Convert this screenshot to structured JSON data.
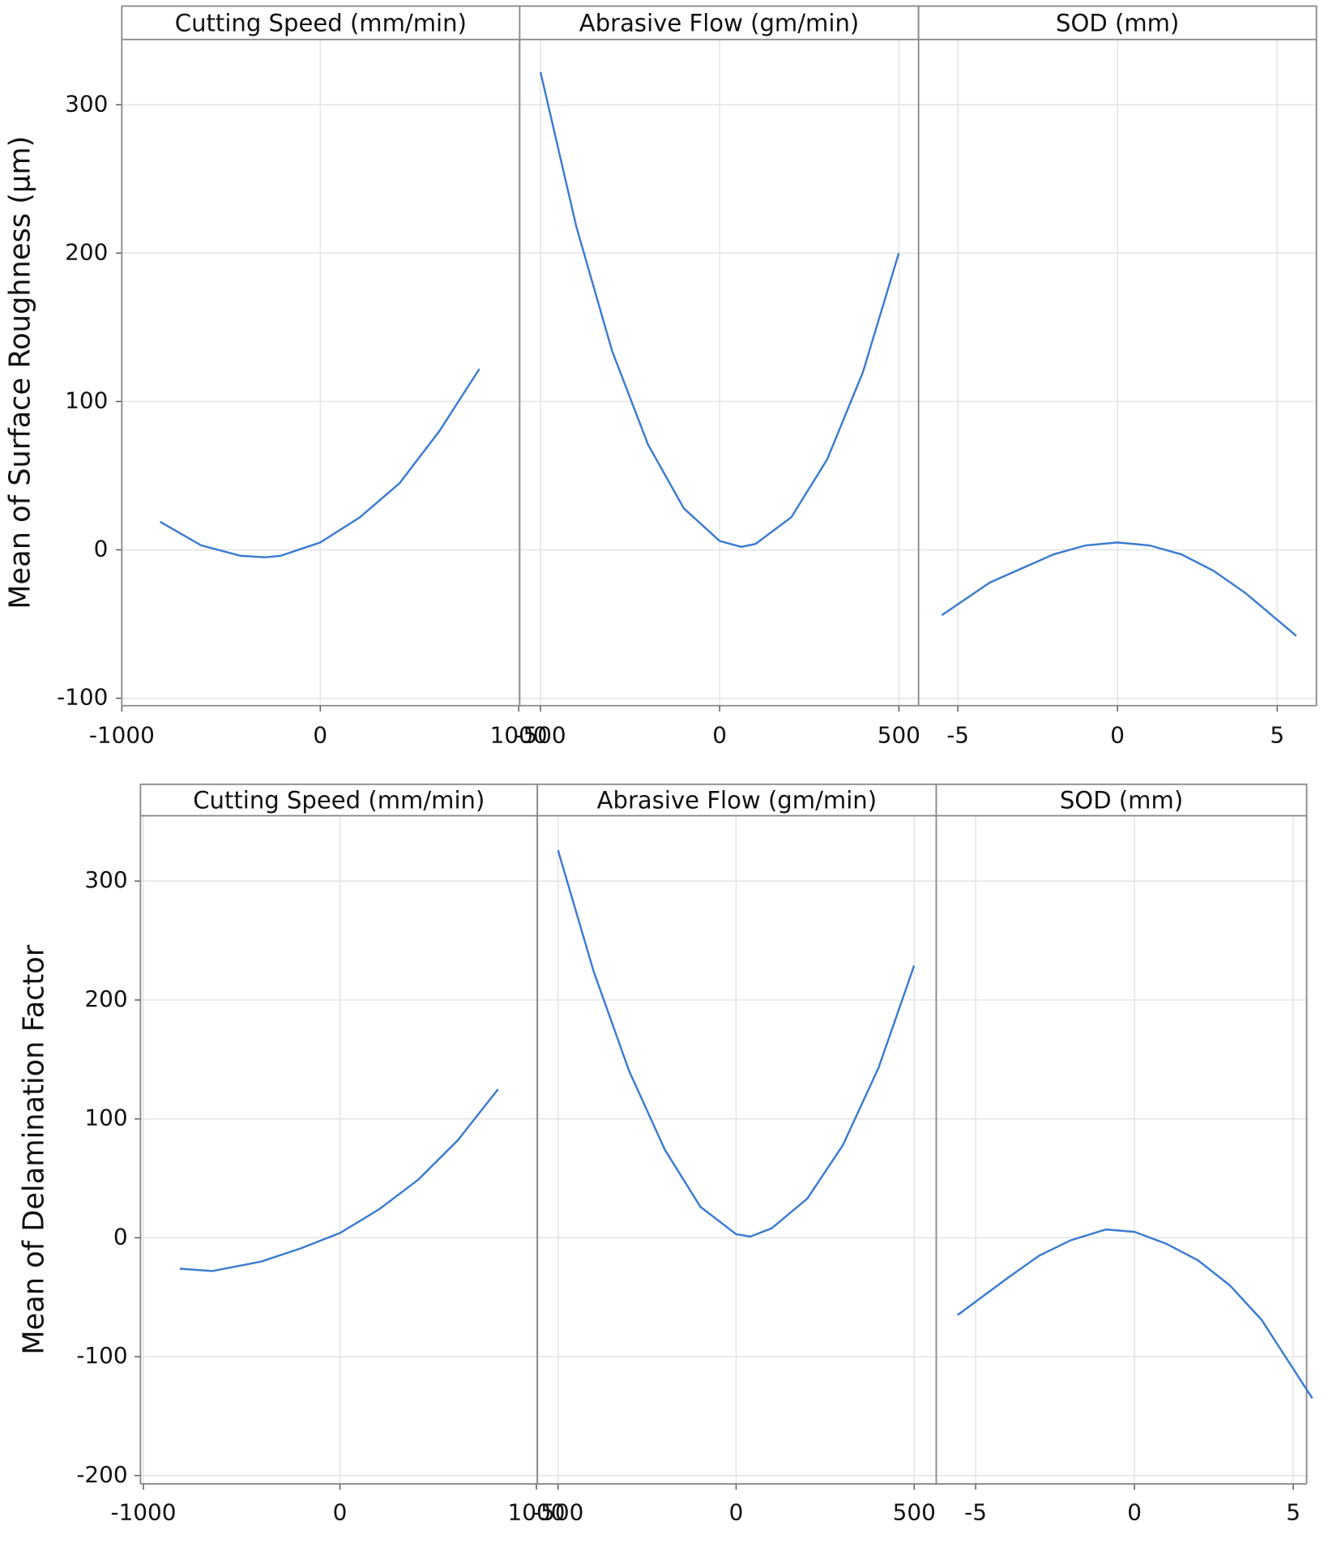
{
  "chart_data": [
    {
      "type": "line",
      "ylabel": "Mean of Surface Roughness (μm)",
      "color": "#3a7bd0",
      "grid": true,
      "ylim": [
        -105,
        344
      ],
      "yticks": [
        -100,
        0,
        100,
        200,
        300
      ],
      "panels": [
        {
          "title": "Cutting Speed (mm/min)",
          "xlim": [
            -1000,
            1005
          ],
          "xticks": [
            -1000,
            0,
            1000
          ],
          "x": [
            -807,
            -600,
            -400,
            -277,
            -200,
            0,
            200,
            400,
            600,
            802
          ],
          "values": [
            19,
            3,
            -4,
            -5,
            -4,
            5,
            22,
            45,
            80,
            122
          ]
        },
        {
          "title": "Abrasive Flow (gm/min)",
          "xlim": [
            -558,
            555
          ],
          "xticks": [
            -500,
            0,
            500
          ],
          "x": [
            -500,
            -400,
            -300,
            -200,
            -100,
            0,
            60,
            100,
            200,
            300,
            400,
            500
          ],
          "values": [
            322,
            218,
            134,
            71,
            28,
            6,
            2,
            4,
            22,
            61,
            120,
            200
          ]
        },
        {
          "title": "SOD (mm)",
          "xlim": [
            -6.23,
            6.23
          ],
          "xticks": [
            -5,
            0,
            5
          ],
          "x": [
            -5.5,
            -4,
            -2,
            -1,
            0,
            1,
            2,
            3,
            4,
            5.6
          ],
          "values": [
            -44,
            -22,
            -3,
            3,
            5,
            3,
            -3,
            -14,
            -29,
            -58
          ]
        }
      ]
    },
    {
      "type": "line",
      "ylabel": "Mean of Delamination Factor",
      "color": "#3a7bd0",
      "grid": true,
      "ylim": [
        -207,
        355
      ],
      "yticks": [
        -200,
        -100,
        0,
        100,
        200,
        300
      ],
      "panels": [
        {
          "title": "Cutting Speed (mm/min)",
          "xlim": [
            -1015,
            1005
          ],
          "xticks": [
            -1000,
            0,
            1000
          ],
          "x": [
            -815,
            -650,
            -400,
            -200,
            0,
            200,
            400,
            600,
            805
          ],
          "values": [
            -26,
            -28,
            -20,
            -9,
            4,
            24,
            49,
            82,
            125
          ]
        },
        {
          "title": "Abrasive Flow (gm/min)",
          "xlim": [
            -558,
            562
          ],
          "xticks": [
            -500,
            0,
            500
          ],
          "x": [
            -500,
            -400,
            -300,
            -200,
            -100,
            0,
            40,
            100,
            200,
            300,
            400,
            500
          ],
          "values": [
            326,
            224,
            140,
            74,
            26,
            3,
            1,
            8,
            33,
            78,
            143,
            229
          ]
        },
        {
          "title": "SOD (mm)",
          "xlim": [
            -6.24,
            5.42
          ],
          "xticks": [
            -5,
            0,
            5
          ],
          "x": [
            -5.57,
            -4,
            -3,
            -2,
            -0.9,
            0,
            1,
            2,
            3,
            4,
            5.6
          ],
          "values": [
            -65,
            -34,
            -15,
            -2,
            7,
            5,
            -5,
            -19,
            -40,
            -69,
            -135
          ]
        }
      ]
    }
  ]
}
